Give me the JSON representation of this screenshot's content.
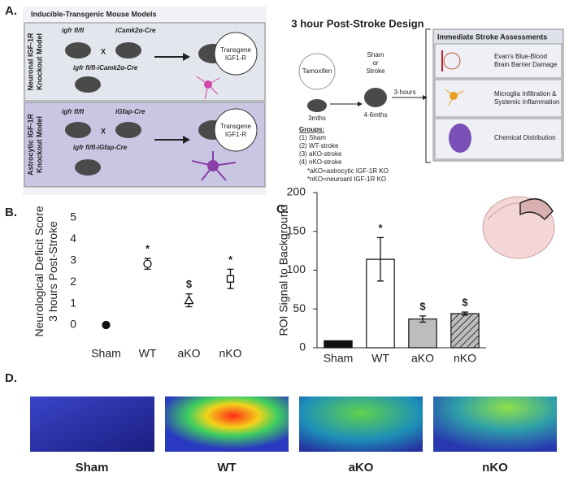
{
  "panel_labels": [
    "A.",
    "B.",
    "C.",
    "D."
  ],
  "panel_a": {
    "models_title": "Inducible-Transgenic Mouse Models",
    "neuronal": {
      "side_label": [
        "Neuronal IGF-1R",
        "Knockout Model"
      ],
      "parent1": "igfr fl/fl",
      "parent2": "iCamk2α-Cre",
      "cross": "X",
      "offspring": "igfr fl/fl-iCamk2α-Cre",
      "transgene": [
        "Transgene",
        "IGF1-R"
      ]
    },
    "astrocytic": {
      "side_label": [
        "Astrocytic IGF-1R",
        "Knockout Model"
      ],
      "parent1": "igfr fl/fl",
      "parent2": "iGfap-Cre",
      "cross": "X",
      "offspring": "igfr fl/fl-iGfap-Cre",
      "transgene": [
        "Transgene",
        "IGF1-R"
      ]
    },
    "design_title": "3 hour Post-Stroke Design",
    "tamoxifen": "Tamoxifen",
    "age1": "3mths",
    "sham_or_stroke": [
      "Sham",
      "or",
      "Stroke"
    ],
    "age2": "4-6mths",
    "interval": "3-hours",
    "groups": [
      "Groups:",
      "(1) Sham",
      "(2) WT-stroke",
      "(3) aKO-stroke",
      "(4) nKO-stroke"
    ],
    "notes": [
      "*aKO=astrocytic IGF-1R KO",
      "*nKO=neuroanl IGF-1R KO"
    ],
    "assessments_title": "Immediate Stroke Assessments",
    "assessments": [
      [
        "Evan's Blue-Blood",
        "Brain Barrier Damage"
      ],
      [
        "Microglia Infiltration &",
        "Systemic Inflammation"
      ],
      [
        "Chemical Distribution"
      ]
    ]
  },
  "chart_data": [
    {
      "type": "point",
      "y_label": [
        "Neurological Deficit Score",
        "3 hours Post-Stroke"
      ],
      "categories": [
        "Sham",
        "WT",
        "aKO",
        "nKO"
      ],
      "values": [
        0,
        2.85,
        1.15,
        2.15
      ],
      "errors": [
        0,
        0.25,
        0.3,
        0.45
      ],
      "markers": [
        "filled-circle",
        "circle",
        "triangle",
        "square"
      ],
      "annotations": [
        null,
        "*",
        "$",
        "*"
      ],
      "color": "#111111",
      "ylim": [
        0,
        5
      ],
      "yticks": [
        0,
        1,
        2,
        3,
        4,
        5
      ],
      "axis_lines": false
    },
    {
      "type": "bar",
      "y_label": [
        "ROI Signal to Background"
      ],
      "categories": [
        "Sham",
        "WT",
        "aKO",
        "nKO"
      ],
      "values": [
        9,
        114,
        37,
        44
      ],
      "errors": [
        0,
        28,
        4,
        2
      ],
      "colors": [
        "#111111",
        "#ffffff",
        "#bdbdbd",
        "#bdbdbd"
      ],
      "hatched": [
        false,
        false,
        false,
        true
      ],
      "annotations": [
        null,
        "*",
        "$",
        "$"
      ],
      "ylim": [
        0,
        200
      ],
      "yticks": [
        0,
        50,
        100,
        150,
        200
      ],
      "axis_lines": true
    }
  ],
  "panel_d": {
    "labels": [
      "Sham",
      "WT",
      "aKO",
      "nKO"
    ]
  }
}
